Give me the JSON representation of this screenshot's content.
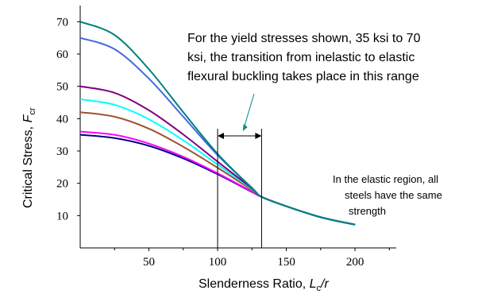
{
  "chart_data": {
    "type": "line",
    "xlabel": {
      "main": "Slenderness Ratio, ",
      "italic": "L",
      "sub": "c",
      "tail": "/r"
    },
    "ylabel": {
      "main": "Critical Stress, ",
      "italic": "F",
      "sub": "cr"
    },
    "xlim": [
      0,
      230
    ],
    "ylim": [
      0,
      75
    ],
    "xticks": [
      50,
      100,
      150,
      200
    ],
    "yticks": [
      10,
      20,
      30,
      40,
      50,
      60,
      70
    ],
    "transition_range": [
      100,
      132
    ],
    "yield_stresses": [
      35,
      36,
      42,
      46,
      50,
      65,
      70
    ],
    "series": [
      {
        "color": "#00008b",
        "x": [
          0,
          25,
          50,
          75,
          100,
          125,
          132,
          150,
          175,
          200
        ],
        "y": [
          35,
          34,
          31.6,
          27.7,
          22.8,
          17.3,
          15.8,
          12.9,
          9.5,
          7.2
        ]
      },
      {
        "color": "#ff00ff",
        "x": [
          0,
          25,
          50,
          75,
          100,
          125,
          132,
          150,
          175,
          200
        ],
        "y": [
          36,
          35,
          32.3,
          28.2,
          23.1,
          17.4,
          15.8,
          12.9,
          9.5,
          7.2
        ]
      },
      {
        "color": "#a0522d",
        "x": [
          0,
          25,
          50,
          75,
          100,
          125,
          132,
          150,
          175,
          200
        ],
        "y": [
          42,
          40.6,
          36.9,
          31.3,
          24.8,
          17.9,
          15.8,
          12.9,
          9.5,
          7.2
        ]
      },
      {
        "color": "#00ffff",
        "x": [
          0,
          25,
          50,
          75,
          100,
          125,
          132,
          150,
          175,
          200
        ],
        "y": [
          46,
          44.3,
          39.8,
          33.3,
          25.8,
          18.2,
          15.8,
          12.9,
          9.5,
          7.2
        ]
      },
      {
        "color": "#800080",
        "x": [
          0,
          25,
          50,
          75,
          100,
          125,
          132,
          150,
          175,
          200
        ],
        "y": [
          50,
          48,
          42.6,
          35.1,
          26.7,
          18.4,
          15.8,
          12.9,
          9.5,
          7.2
        ]
      },
      {
        "color": "#4169e1",
        "x": [
          0,
          25,
          50,
          75,
          100,
          125,
          132,
          150,
          175,
          200
        ],
        "y": [
          65,
          61.5,
          52.4,
          40.6,
          28.7,
          18.6,
          15.8,
          12.9,
          9.5,
          7.2
        ]
      },
      {
        "color": "#008080",
        "x": [
          0,
          25,
          50,
          75,
          100,
          125,
          132,
          150,
          175,
          200
        ],
        "y": [
          70,
          65.9,
          55.3,
          42,
          29.1,
          18.5,
          15.8,
          12.9,
          9.5,
          7.2
        ]
      }
    ],
    "annotations": [
      {
        "id": "transition",
        "lines": [
          "For the yield stresses shown, 35 ksi to 70",
          "ksi, the transition from inelastic to elastic",
          "flexural buckling takes place in this range"
        ]
      },
      {
        "id": "elastic",
        "lines": [
          "In the elastic region, all",
          "steels have the same",
          "strength"
        ]
      }
    ],
    "arrow_color": "#008b8b"
  }
}
